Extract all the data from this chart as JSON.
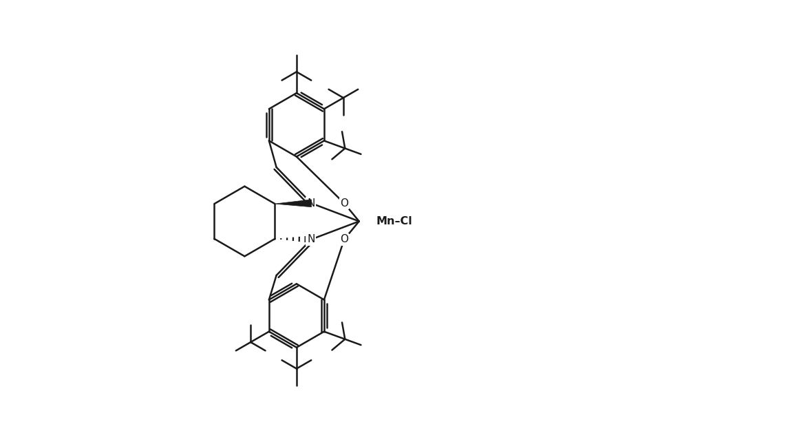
{
  "bg_color": "#ffffff",
  "line_color": "#1a1a1a",
  "lw": 1.8,
  "figsize": [
    11.45,
    6.45
  ],
  "dpi": 100,
  "xlim": [
    0,
    11.45
  ],
  "ylim": [
    0,
    6.45
  ],
  "mn_label": "Mn–Cl",
  "font_size_label": 11.5,
  "font_size_atom": 11.0
}
